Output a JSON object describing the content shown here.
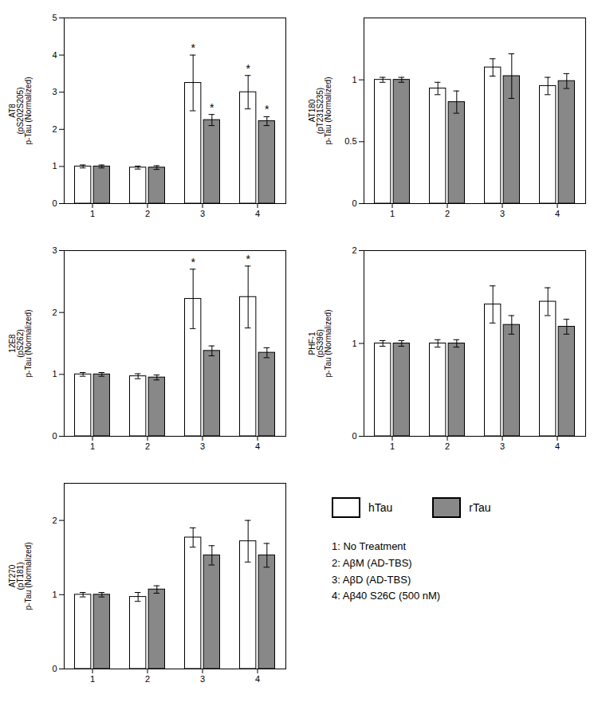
{
  "chart_data": [
    {
      "type": "bar",
      "ylabel": "AT8\n(pS202S205)\np-Tau (Normalized)",
      "categories": [
        "1",
        "2",
        "3",
        "4"
      ],
      "series": [
        {
          "name": "hTau",
          "color": "white",
          "values": [
            1.0,
            0.97,
            3.25,
            3.0
          ],
          "errors": [
            0.04,
            0.04,
            0.75,
            0.45
          ],
          "annotations": [
            null,
            null,
            "*",
            "*"
          ]
        },
        {
          "name": "rTau",
          "color": "#888888",
          "values": [
            1.0,
            0.97,
            2.25,
            2.22
          ],
          "errors": [
            0.04,
            0.05,
            0.15,
            0.12
          ],
          "annotations": [
            null,
            null,
            "*",
            "*"
          ]
        }
      ],
      "ylim": [
        0,
        5
      ],
      "yticks": [
        0,
        1,
        2,
        3,
        4,
        5
      ]
    },
    {
      "type": "bar",
      "ylabel": "AT180\n(pT231S235)\np-Tau (Normalized)",
      "categories": [
        "1",
        "2",
        "3",
        "4"
      ],
      "series": [
        {
          "name": "hTau",
          "color": "white",
          "values": [
            1.0,
            0.93,
            1.1,
            0.95
          ],
          "errors": [
            0.02,
            0.05,
            0.07,
            0.07
          ]
        },
        {
          "name": "rTau",
          "color": "#888888",
          "values": [
            1.0,
            0.82,
            1.03,
            0.99
          ],
          "errors": [
            0.02,
            0.09,
            0.18,
            0.06
          ]
        }
      ],
      "ylim": [
        0,
        1.5
      ],
      "yticks": [
        0,
        0.5,
        1
      ]
    },
    {
      "type": "bar",
      "ylabel": "12E8\n(pS262)\np-Tau (Normalized)",
      "categories": [
        "1",
        "2",
        "3",
        "4"
      ],
      "series": [
        {
          "name": "hTau",
          "color": "white",
          "values": [
            1.0,
            0.97,
            2.22,
            2.25
          ],
          "errors": [
            0.03,
            0.04,
            0.48,
            0.5
          ],
          "annotations": [
            null,
            null,
            "*",
            "*"
          ]
        },
        {
          "name": "rTau",
          "color": "#888888",
          "values": [
            1.0,
            0.95,
            1.38,
            1.35
          ],
          "errors": [
            0.03,
            0.04,
            0.08,
            0.08
          ]
        }
      ],
      "ylim": [
        0,
        3
      ],
      "yticks": [
        0,
        1,
        2,
        3
      ]
    },
    {
      "type": "bar",
      "ylabel": "PHF-1\n(pS396)\np-Tau (Normalized)",
      "categories": [
        "1",
        "2",
        "3",
        "4"
      ],
      "series": [
        {
          "name": "hTau",
          "color": "white",
          "values": [
            1.0,
            1.0,
            1.42,
            1.45
          ],
          "errors": [
            0.03,
            0.04,
            0.2,
            0.15
          ]
        },
        {
          "name": "rTau",
          "color": "#888888",
          "values": [
            1.0,
            1.0,
            1.2,
            1.18
          ],
          "errors": [
            0.03,
            0.04,
            0.1,
            0.08
          ]
        }
      ],
      "ylim": [
        0,
        2
      ],
      "yticks": [
        0,
        1,
        2
      ]
    },
    {
      "type": "bar",
      "ylabel": "AT270\n(pT181)\np-Tau (Normalized)",
      "categories": [
        "1",
        "2",
        "3",
        "4"
      ],
      "series": [
        {
          "name": "hTau",
          "color": "white",
          "values": [
            1.0,
            0.97,
            1.77,
            1.72
          ],
          "errors": [
            0.03,
            0.06,
            0.13,
            0.28
          ]
        },
        {
          "name": "rTau",
          "color": "#888888",
          "values": [
            1.0,
            1.07,
            1.53,
            1.53
          ],
          "errors": [
            0.03,
            0.05,
            0.13,
            0.16
          ]
        }
      ],
      "ylim": [
        0,
        2.5
      ],
      "yticks": [
        0,
        1,
        2
      ]
    }
  ],
  "annotations": [
    "1: No Treatment",
    "2: AβM (AD-TBS)",
    "3: AβD (AD-TBS)",
    "4: Aβ40 S26C (500 nM)"
  ]
}
